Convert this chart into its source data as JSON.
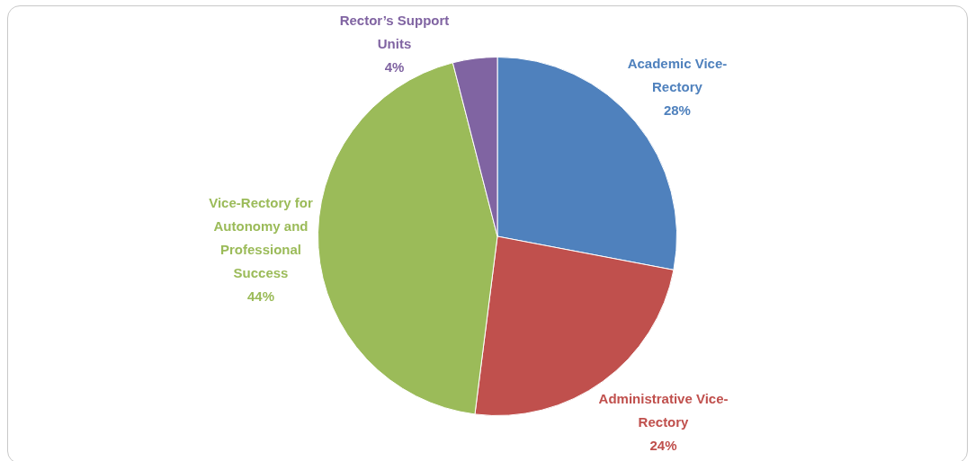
{
  "chart_data": {
    "type": "pie",
    "categories": [
      "Academic Vice-Rectory",
      "Administrative Vice-Rectory",
      "Vice-Rectory for Autonomy and Professional Success",
      "Rector’s Support Units"
    ],
    "values": [
      28,
      24,
      44,
      4
    ],
    "colors": [
      "#4f81bd",
      "#c0504d",
      "#9bbb59",
      "#8064a2"
    ],
    "value_labels": [
      "28%",
      "24%",
      "44%",
      "4%"
    ],
    "legend": false
  }
}
